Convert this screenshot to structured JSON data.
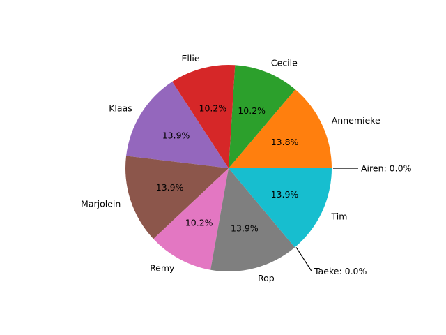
{
  "chart_data": {
    "type": "pie",
    "title": "",
    "legend": "none",
    "slices": [
      {
        "label": "Airen",
        "value": 0.0,
        "color": "#1f77b4",
        "pct_text": "",
        "callout": "Airen: 0.0%"
      },
      {
        "label": "Annemieke",
        "value": 13.8,
        "color": "#ff7f0e",
        "pct_text": "13.8%"
      },
      {
        "label": "Cecile",
        "value": 10.2,
        "color": "#2ca02c",
        "pct_text": "10.2%"
      },
      {
        "label": "Ellie",
        "value": 10.2,
        "color": "#d62728",
        "pct_text": "10.2%"
      },
      {
        "label": "Klaas",
        "value": 13.9,
        "color": "#9467bd",
        "pct_text": "13.9%"
      },
      {
        "label": "Marjolein",
        "value": 13.9,
        "color": "#8c564b",
        "pct_text": "13.9%"
      },
      {
        "label": "Remy",
        "value": 10.2,
        "color": "#e377c2",
        "pct_text": "10.2%"
      },
      {
        "label": "Rop",
        "value": 13.9,
        "color": "#7f7f7f",
        "pct_text": "13.9%"
      },
      {
        "label": "Taeke",
        "value": 0.0,
        "color": "#bcbd22",
        "pct_text": "",
        "callout": "Taeke: 0.0%"
      },
      {
        "label": "Tim",
        "value": 13.9,
        "color": "#17becf",
        "pct_text": "13.9%"
      }
    ]
  }
}
